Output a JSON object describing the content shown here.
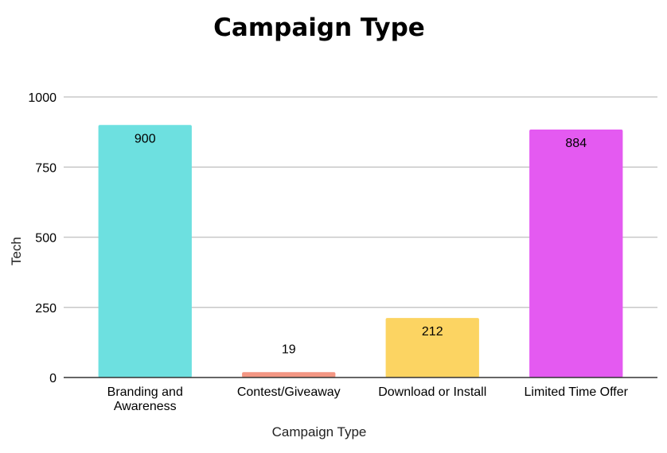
{
  "chart_data": {
    "type": "bar",
    "title": "Campaign Type",
    "xlabel": "Campaign Type",
    "ylabel": "Tech",
    "ylim": [
      0,
      1000
    ],
    "yticks": [
      0,
      250,
      500,
      750,
      1000
    ],
    "categories": [
      [
        "Branding and",
        "Awareness"
      ],
      [
        "Contest/Giveaway"
      ],
      [
        "Download or Install"
      ],
      [
        "Limited Time Offer"
      ]
    ],
    "values": [
      900,
      19,
      212,
      884
    ],
    "value_labels": [
      "900",
      "19",
      "212",
      "884"
    ],
    "colors": [
      "#6de0e0",
      "#f39683",
      "#fcd462",
      "#e45af1"
    ],
    "label_colors": [
      "#000000",
      "#f39683",
      "#000000",
      "#000000"
    ],
    "grid": true,
    "legend": "none"
  }
}
